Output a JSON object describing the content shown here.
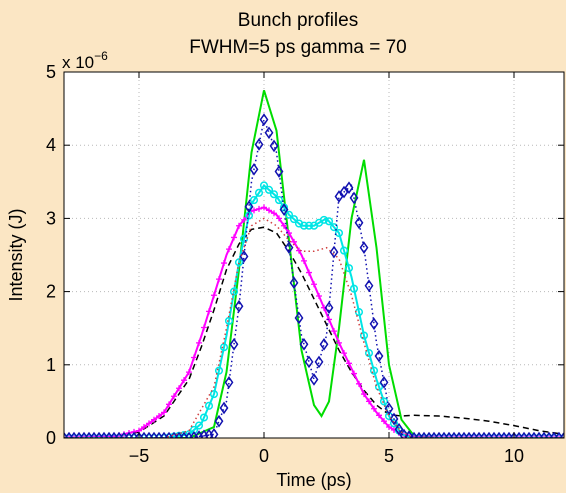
{
  "chart_data": {
    "type": "line",
    "title": "Bunch profiles",
    "subtitle": "FWHM=5 ps gamma = 70",
    "xlabel": "Time (ps)",
    "ylabel": "Intensity (J)",
    "y_scale_label": "x 10",
    "y_scale_exponent": "−6",
    "xlim": [
      -8,
      12
    ],
    "ylim": [
      0,
      5
    ],
    "xticks": [
      -5,
      0,
      5,
      10
    ],
    "xtick_labels": [
      "−5",
      "0",
      "5",
      "10"
    ],
    "yticks": [
      0,
      1,
      2,
      3,
      4,
      5
    ],
    "ytick_labels": [
      "0",
      "1",
      "2",
      "3",
      "4",
      "5"
    ],
    "grid": true,
    "legend": "none",
    "series": [
      {
        "style": "dashed",
        "color": "#000000",
        "marker": "none",
        "x": [
          -8,
          -7,
          -6,
          -5,
          -4,
          -3,
          -2.5,
          -2,
          -1.5,
          -1,
          -0.5,
          0,
          0.5,
          1,
          1.5,
          2,
          2.5,
          3,
          3.5,
          4,
          4.5,
          5,
          5.5,
          6,
          7,
          8,
          9,
          10,
          11,
          12
        ],
        "y": [
          0,
          0,
          0.02,
          0.08,
          0.3,
          0.8,
          1.25,
          1.75,
          2.3,
          2.65,
          2.85,
          2.88,
          2.8,
          2.55,
          2.25,
          1.9,
          1.55,
          1.2,
          0.9,
          0.65,
          0.45,
          0.32,
          0.3,
          0.31,
          0.3,
          0.27,
          0.23,
          0.17,
          0.1,
          0.05
        ]
      },
      {
        "style": "solid",
        "color": "#00dd00",
        "marker": "none",
        "x": [
          -8,
          -3,
          -2,
          -1.5,
          -1,
          -0.5,
          0,
          0.5,
          1,
          1.5,
          2,
          2.3,
          2.6,
          3,
          3.5,
          4,
          4.5,
          5,
          5.5,
          6,
          7,
          12
        ],
        "y": [
          0,
          0,
          0.15,
          0.9,
          2.3,
          3.9,
          4.75,
          4.2,
          2.7,
          1.2,
          0.45,
          0.3,
          0.5,
          1.5,
          3.0,
          3.8,
          2.6,
          1.0,
          0.25,
          0.03,
          0,
          0
        ]
      },
      {
        "style": "solid",
        "color": "#ff00ff",
        "marker": "plus",
        "x": [
          -8,
          -6,
          -5,
          -4,
          -3,
          -2.5,
          -2,
          -1.5,
          -1,
          -0.5,
          0,
          0.5,
          1,
          1.5,
          2,
          2.5,
          3,
          3.5,
          4,
          4.5,
          5,
          5.5,
          6,
          7,
          8,
          12
        ],
        "y": [
          0,
          0.02,
          0.1,
          0.35,
          0.9,
          1.4,
          1.95,
          2.5,
          2.9,
          3.1,
          3.15,
          3.05,
          2.8,
          2.5,
          2.1,
          1.7,
          1.3,
          0.95,
          0.6,
          0.35,
          0.15,
          0.05,
          0.01,
          0,
          0,
          0
        ]
      },
      {
        "style": "solid",
        "color": "#00e5e5",
        "marker": "circle",
        "x": [
          -8,
          -4,
          -3,
          -2.5,
          -2,
          -1.5,
          -1,
          -0.5,
          0,
          0.5,
          1,
          1.5,
          2,
          2.5,
          3,
          3.5,
          4,
          4.5,
          5,
          5.5,
          6,
          7,
          12
        ],
        "y": [
          0,
          0,
          0.05,
          0.2,
          0.6,
          1.4,
          2.4,
          3.2,
          3.45,
          3.3,
          3.05,
          2.9,
          2.9,
          3.0,
          2.8,
          2.2,
          1.4,
          0.8,
          0.3,
          0.05,
          0,
          0,
          0
        ]
      },
      {
        "style": "dotted",
        "color": "#1010b0",
        "marker": "diamond",
        "x": [
          -8,
          -3,
          -2,
          -1.5,
          -1,
          -0.5,
          0,
          0.5,
          1,
          1.5,
          2,
          2.5,
          3,
          3.5,
          4,
          4.5,
          5,
          5.5,
          6,
          7,
          12
        ],
        "y": [
          0,
          0,
          0.05,
          0.5,
          1.8,
          3.5,
          4.35,
          3.9,
          2.6,
          1.4,
          0.8,
          1.4,
          3.3,
          3.45,
          2.6,
          1.3,
          0.4,
          0.05,
          0,
          0,
          0
        ]
      },
      {
        "style": "dotted",
        "color": "#d04040",
        "marker": "none",
        "x": [
          -8,
          -4,
          -3,
          -2,
          -1.5,
          -1,
          -0.5,
          0,
          0.5,
          1,
          1.5,
          2,
          2.5,
          3,
          3.5,
          4,
          4.5,
          5,
          5.5,
          6,
          12
        ],
        "y": [
          0,
          0,
          0.1,
          0.7,
          1.5,
          2.4,
          2.9,
          3.0,
          2.9,
          2.7,
          2.55,
          2.55,
          2.6,
          2.45,
          1.95,
          1.3,
          0.7,
          0.3,
          0.08,
          0,
          0
        ]
      }
    ]
  }
}
